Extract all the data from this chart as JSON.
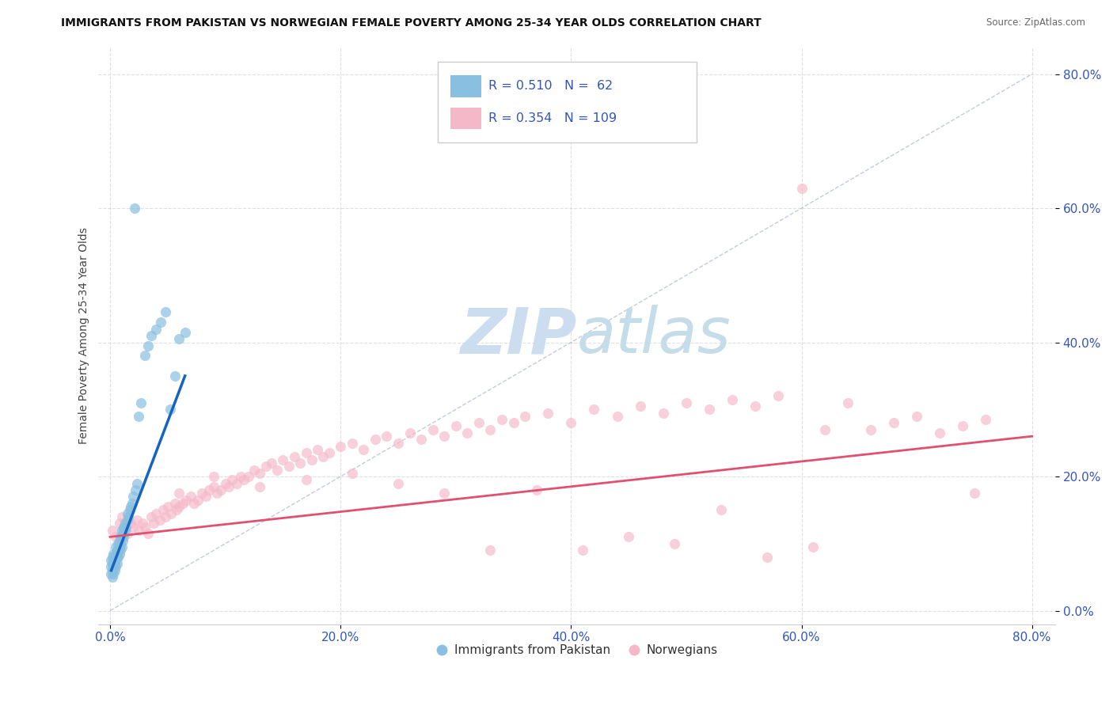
{
  "title": "IMMIGRANTS FROM PAKISTAN VS NORWEGIAN FEMALE POVERTY AMONG 25-34 YEAR OLDS CORRELATION CHART",
  "source": "Source: ZipAtlas.com",
  "ylabel": "Female Poverty Among 25-34 Year Olds",
  "x_tick_vals": [
    0,
    0.2,
    0.4,
    0.6,
    0.8
  ],
  "y_tick_vals": [
    0,
    0.2,
    0.4,
    0.6,
    0.8
  ],
  "blue_R": 0.51,
  "blue_N": 62,
  "pink_R": 0.354,
  "pink_N": 109,
  "legend_label_blue": "Immigrants from Pakistan",
  "legend_label_pink": "Norwegians",
  "blue_color": "#89bfe0",
  "pink_color": "#f5b8c8",
  "blue_trend_color": "#1565c0",
  "pink_trend_color": "#e05070",
  "legend_R_color": "#3355bb",
  "watermark_color": "#ccddf0",
  "background_color": "#ffffff",
  "grid_color": "#cccccc",
  "blue_scatter_x": [
    0.001,
    0.001,
    0.001,
    0.002,
    0.002,
    0.002,
    0.002,
    0.003,
    0.003,
    0.003,
    0.003,
    0.004,
    0.004,
    0.004,
    0.005,
    0.005,
    0.005,
    0.005,
    0.006,
    0.006,
    0.006,
    0.007,
    0.007,
    0.007,
    0.008,
    0.008,
    0.008,
    0.009,
    0.009,
    0.009,
    0.01,
    0.01,
    0.01,
    0.011,
    0.011,
    0.012,
    0.012,
    0.013,
    0.013,
    0.014,
    0.015,
    0.015,
    0.016,
    0.017,
    0.018,
    0.019,
    0.02,
    0.021,
    0.022,
    0.023,
    0.025,
    0.027,
    0.03,
    0.033,
    0.036,
    0.04,
    0.044,
    0.048,
    0.052,
    0.056,
    0.06,
    0.065
  ],
  "blue_scatter_y": [
    0.055,
    0.065,
    0.075,
    0.05,
    0.06,
    0.07,
    0.08,
    0.055,
    0.065,
    0.075,
    0.085,
    0.06,
    0.07,
    0.08,
    0.065,
    0.075,
    0.085,
    0.095,
    0.07,
    0.08,
    0.09,
    0.08,
    0.09,
    0.1,
    0.085,
    0.095,
    0.105,
    0.09,
    0.1,
    0.11,
    0.095,
    0.11,
    0.12,
    0.105,
    0.115,
    0.11,
    0.125,
    0.12,
    0.13,
    0.125,
    0.135,
    0.145,
    0.14,
    0.15,
    0.155,
    0.16,
    0.17,
    0.6,
    0.18,
    0.19,
    0.29,
    0.31,
    0.38,
    0.395,
    0.41,
    0.42,
    0.43,
    0.445,
    0.3,
    0.35,
    0.405,
    0.415
  ],
  "pink_scatter_x": [
    0.002,
    0.005,
    0.008,
    0.01,
    0.012,
    0.015,
    0.018,
    0.02,
    0.023,
    0.025,
    0.028,
    0.03,
    0.033,
    0.036,
    0.038,
    0.04,
    0.043,
    0.046,
    0.048,
    0.05,
    0.053,
    0.056,
    0.058,
    0.06,
    0.063,
    0.066,
    0.07,
    0.073,
    0.076,
    0.08,
    0.083,
    0.086,
    0.09,
    0.093,
    0.096,
    0.1,
    0.103,
    0.106,
    0.11,
    0.113,
    0.116,
    0.12,
    0.125,
    0.13,
    0.135,
    0.14,
    0.145,
    0.15,
    0.155,
    0.16,
    0.165,
    0.17,
    0.175,
    0.18,
    0.185,
    0.19,
    0.2,
    0.21,
    0.22,
    0.23,
    0.24,
    0.25,
    0.26,
    0.27,
    0.28,
    0.29,
    0.3,
    0.31,
    0.32,
    0.33,
    0.34,
    0.35,
    0.36,
    0.38,
    0.4,
    0.42,
    0.44,
    0.46,
    0.48,
    0.5,
    0.52,
    0.54,
    0.56,
    0.58,
    0.6,
    0.62,
    0.64,
    0.66,
    0.68,
    0.7,
    0.72,
    0.74,
    0.76,
    0.06,
    0.09,
    0.13,
    0.17,
    0.21,
    0.25,
    0.29,
    0.33,
    0.37,
    0.41,
    0.45,
    0.49,
    0.53,
    0.57,
    0.61,
    0.75
  ],
  "pink_scatter_y": [
    0.12,
    0.11,
    0.13,
    0.14,
    0.12,
    0.115,
    0.13,
    0.125,
    0.135,
    0.12,
    0.13,
    0.125,
    0.115,
    0.14,
    0.13,
    0.145,
    0.135,
    0.15,
    0.14,
    0.155,
    0.145,
    0.16,
    0.15,
    0.155,
    0.16,
    0.165,
    0.17,
    0.16,
    0.165,
    0.175,
    0.17,
    0.18,
    0.185,
    0.175,
    0.18,
    0.19,
    0.185,
    0.195,
    0.19,
    0.2,
    0.195,
    0.2,
    0.21,
    0.205,
    0.215,
    0.22,
    0.21,
    0.225,
    0.215,
    0.23,
    0.22,
    0.235,
    0.225,
    0.24,
    0.23,
    0.235,
    0.245,
    0.25,
    0.24,
    0.255,
    0.26,
    0.25,
    0.265,
    0.255,
    0.27,
    0.26,
    0.275,
    0.265,
    0.28,
    0.27,
    0.285,
    0.28,
    0.29,
    0.295,
    0.28,
    0.3,
    0.29,
    0.305,
    0.295,
    0.31,
    0.3,
    0.315,
    0.305,
    0.32,
    0.63,
    0.27,
    0.31,
    0.27,
    0.28,
    0.29,
    0.265,
    0.275,
    0.285,
    0.175,
    0.2,
    0.185,
    0.195,
    0.205,
    0.19,
    0.175,
    0.09,
    0.18,
    0.09,
    0.11,
    0.1,
    0.15,
    0.08,
    0.095,
    0.175
  ],
  "blue_trend_x": [
    0.001,
    0.065
  ],
  "blue_trend_y": [
    0.06,
    0.35
  ],
  "pink_trend_x": [
    0.0,
    0.8
  ],
  "pink_trend_y": [
    0.11,
    0.26
  ]
}
